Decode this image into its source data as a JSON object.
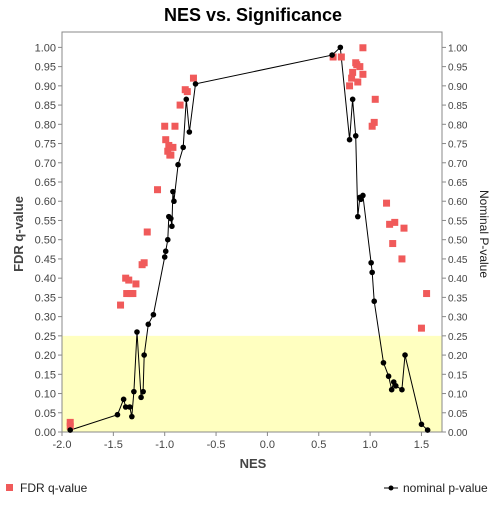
{
  "chart_data": {
    "type": "scatter",
    "title": "NES vs. Significance",
    "xlabel": "NES",
    "ylabel_left": "FDR q-value",
    "ylabel_right": "Nominal P-value",
    "xlim": [
      -2.0,
      1.7
    ],
    "ylim": [
      0.0,
      1.04
    ],
    "x_ticks": [
      -2.0,
      -1.5,
      -1.0,
      -0.5,
      0.0,
      0.5,
      1.0,
      1.5
    ],
    "x_tick_labels": [
      "-2.0",
      "-1.5",
      "-1.0",
      "-0.5",
      "0.0",
      "0.5",
      "1.0",
      "1.5"
    ],
    "y_ticks": [
      0.0,
      0.05,
      0.1,
      0.15,
      0.2,
      0.25,
      0.3,
      0.35,
      0.4,
      0.45,
      0.5,
      0.55,
      0.6,
      0.65,
      0.7,
      0.75,
      0.8,
      0.85,
      0.9,
      0.95,
      1.0
    ],
    "y_tick_labels_left": [
      "0.00",
      "0.05",
      "0.10",
      "0.15",
      "0.20",
      "0.25",
      "0.30",
      "0.35",
      "0.40",
      "0.45",
      "0.50",
      "0.55",
      "0.60",
      "0.65",
      "0.70",
      "0.75",
      "0.80",
      "0.85",
      "0.90",
      "0.95",
      "1.00"
    ],
    "y_tick_labels_right": [
      "0.00",
      "0.05",
      "0.10",
      "0.15",
      "0.20",
      "0.25",
      "0.30",
      "0.35",
      "0.40",
      "0.45",
      "0.50",
      "0.55",
      "0.60",
      "0.65",
      "0.70",
      "0.75",
      "0.80",
      "0.85",
      "0.90",
      "0.95",
      "1.00"
    ],
    "significance_band": [
      0.0,
      0.25
    ],
    "band_color": "#ffffc0",
    "grid": false,
    "legend_position": "bottom",
    "series": [
      {
        "name": "FDR q-value",
        "marker": "square",
        "color": "#f05a5a",
        "points": [
          [
            -1.92,
            0.025
          ],
          [
            -1.92,
            0.015
          ],
          [
            -1.43,
            0.33
          ],
          [
            -1.38,
            0.4
          ],
          [
            -1.37,
            0.36
          ],
          [
            -1.35,
            0.395
          ],
          [
            -1.33,
            0.36
          ],
          [
            -1.31,
            0.36
          ],
          [
            -1.28,
            0.385
          ],
          [
            -1.22,
            0.435
          ],
          [
            -1.2,
            0.44
          ],
          [
            -1.17,
            0.52
          ],
          [
            -1.07,
            0.63
          ],
          [
            -1.0,
            0.795
          ],
          [
            -0.99,
            0.76
          ],
          [
            -0.97,
            0.73
          ],
          [
            -0.96,
            0.745
          ],
          [
            -0.95,
            0.72
          ],
          [
            -0.94,
            0.72
          ],
          [
            -0.92,
            0.74
          ],
          [
            -0.9,
            0.795
          ],
          [
            -0.85,
            0.85
          ],
          [
            -0.8,
            0.89
          ],
          [
            -0.78,
            0.885
          ],
          [
            -0.72,
            0.92
          ],
          [
            0.64,
            0.975
          ],
          [
            0.72,
            0.975
          ],
          [
            0.8,
            0.9
          ],
          [
            0.82,
            0.92
          ],
          [
            0.83,
            0.935
          ],
          [
            0.86,
            0.96
          ],
          [
            0.87,
            0.955
          ],
          [
            0.88,
            0.91
          ],
          [
            0.9,
            0.95
          ],
          [
            0.93,
            0.93
          ],
          [
            0.93,
            0.999
          ],
          [
            1.02,
            0.795
          ],
          [
            1.04,
            0.805
          ],
          [
            1.05,
            0.865
          ],
          [
            1.16,
            0.595
          ],
          [
            1.19,
            0.54
          ],
          [
            1.22,
            0.49
          ],
          [
            1.24,
            0.545
          ],
          [
            1.31,
            0.45
          ],
          [
            1.33,
            0.53
          ],
          [
            1.5,
            0.27
          ],
          [
            1.55,
            0.36
          ]
        ]
      },
      {
        "name": "nominal p-value",
        "marker": "circle-line",
        "color": "#000000",
        "points": [
          [
            -1.92,
            0.005
          ],
          [
            -1.46,
            0.045
          ],
          [
            -1.4,
            0.085
          ],
          [
            -1.38,
            0.065
          ],
          [
            -1.34,
            0.065
          ],
          [
            -1.32,
            0.04
          ],
          [
            -1.3,
            0.105
          ],
          [
            -1.27,
            0.26
          ],
          [
            -1.23,
            0.09
          ],
          [
            -1.21,
            0.105
          ],
          [
            -1.2,
            0.2
          ],
          [
            -1.16,
            0.28
          ],
          [
            -1.11,
            0.305
          ],
          [
            -1.0,
            0.455
          ],
          [
            -0.99,
            0.47
          ],
          [
            -0.97,
            0.5
          ],
          [
            -0.96,
            0.56
          ],
          [
            -0.94,
            0.555
          ],
          [
            -0.93,
            0.535
          ],
          [
            -0.92,
            0.625
          ],
          [
            -0.91,
            0.6
          ],
          [
            -0.87,
            0.695
          ],
          [
            -0.82,
            0.74
          ],
          [
            -0.79,
            0.865
          ],
          [
            -0.76,
            0.78
          ],
          [
            -0.7,
            0.905
          ],
          [
            0.63,
            0.98
          ],
          [
            0.71,
            1.0
          ],
          [
            0.8,
            0.76
          ],
          [
            0.83,
            0.865
          ],
          [
            0.86,
            0.77
          ],
          [
            0.88,
            0.56
          ],
          [
            0.9,
            0.61
          ],
          [
            0.91,
            0.605
          ],
          [
            0.93,
            0.615
          ],
          [
            1.01,
            0.44
          ],
          [
            1.02,
            0.415
          ],
          [
            1.04,
            0.34
          ],
          [
            1.13,
            0.18
          ],
          [
            1.18,
            0.145
          ],
          [
            1.21,
            0.11
          ],
          [
            1.23,
            0.13
          ],
          [
            1.25,
            0.12
          ],
          [
            1.31,
            0.11
          ],
          [
            1.34,
            0.2
          ],
          [
            1.5,
            0.02
          ],
          [
            1.56,
            0.005
          ]
        ]
      }
    ]
  }
}
